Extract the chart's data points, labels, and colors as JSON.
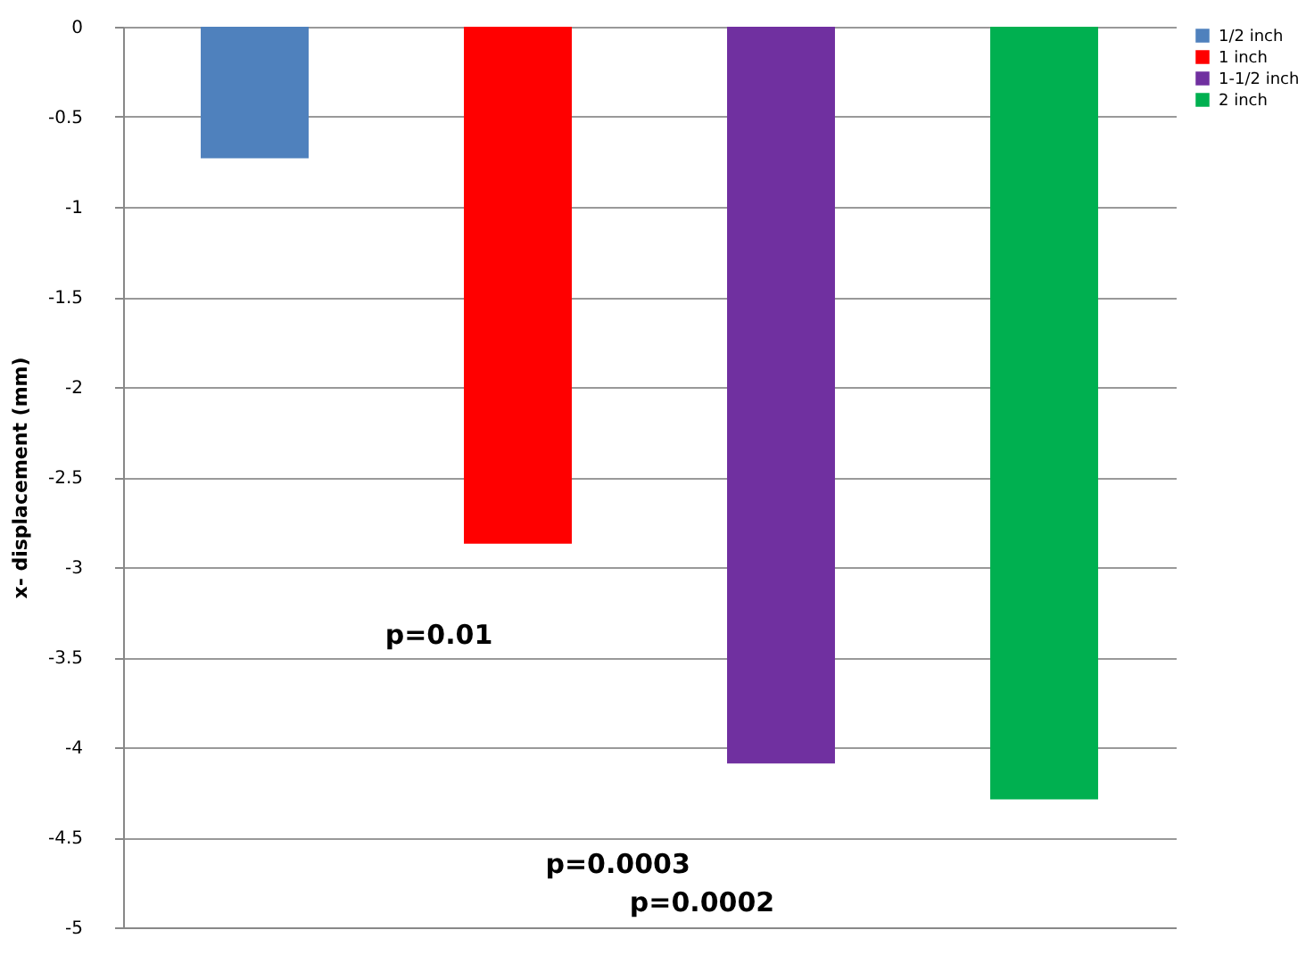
{
  "chart_data": {
    "type": "bar",
    "ylabel": "x- displacement (mm)",
    "categories": [
      null
    ],
    "series": [
      {
        "name": "1/2 inch",
        "color": "#4f81bd",
        "values": [
          -0.73
        ]
      },
      {
        "name": "1 inch",
        "color": "#ff0000",
        "values": [
          -2.87
        ]
      },
      {
        "name": "1-1/2 inch",
        "color": "#7030a0",
        "values": [
          -4.09
        ]
      },
      {
        "name": "2 inch",
        "color": "#00b050",
        "values": [
          -4.29
        ]
      }
    ],
    "ylim": [
      -5,
      0
    ],
    "yticks": [
      0,
      -0.5,
      -1,
      -1.5,
      -2,
      -2.5,
      -3,
      -3.5,
      -4,
      -4.5,
      -5
    ],
    "grid": "y",
    "legend": "right",
    "annotations": [
      "p=0.01",
      "p=0.0003",
      "p=0.0002"
    ]
  }
}
